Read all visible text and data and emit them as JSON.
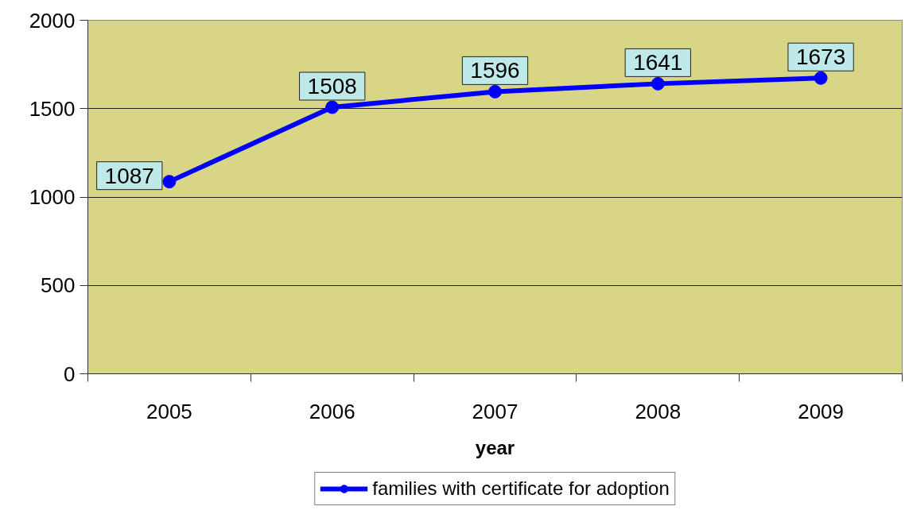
{
  "chart_data": {
    "type": "line",
    "categories": [
      "2005",
      "2006",
      "2007",
      "2008",
      "2009"
    ],
    "xlabel": "year",
    "series": [
      {
        "name": "families with certificate for adoption",
        "color": "#0000ff",
        "values": [
          1087,
          1508,
          1596,
          1641,
          1673
        ]
      }
    ],
    "ylim": [
      0,
      2000
    ],
    "yticks": [
      0,
      500,
      1000,
      1500,
      2000
    ],
    "grid": "y",
    "legend": "bottom",
    "marker": "circle",
    "line_style": "solid",
    "data_labels": true
  }
}
